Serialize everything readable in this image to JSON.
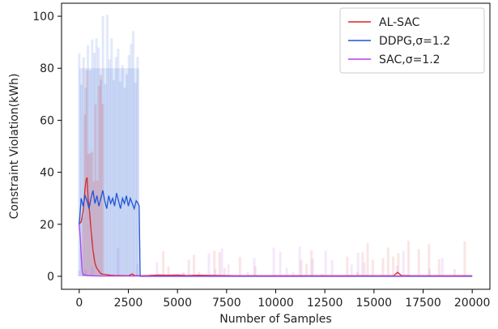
{
  "chart_data": {
    "type": "line",
    "title": "",
    "xlabel": "Number of Samples",
    "ylabel": "Constraint Violation(kWh)",
    "xlim": [
      -900,
      20900
    ],
    "ylim": [
      -5,
      105
    ],
    "x_ticks": [
      0,
      2500,
      5000,
      7500,
      10000,
      12500,
      15000,
      17500,
      20000
    ],
    "x_tick_labels": [
      "0",
      "2500",
      "5000",
      "7500",
      "10000",
      "12500",
      "15000",
      "17500",
      "20000"
    ],
    "y_ticks": [
      0,
      20,
      40,
      60,
      80,
      100
    ],
    "y_tick_labels": [
      "0",
      "20",
      "40",
      "60",
      "80",
      "100"
    ],
    "grid": false,
    "legend_position": "top-right",
    "series": [
      {
        "name": "AL-SAC",
        "color": "#d62728",
        "x": [
          0,
          100,
          200,
          300,
          350,
          400,
          450,
          500,
          600,
          700,
          800,
          900,
          1000,
          1100,
          1200,
          1400,
          1600,
          1800,
          2000,
          2500,
          2700,
          2800,
          3000,
          3500,
          4000,
          4500,
          5000,
          5500,
          6000,
          8000,
          10000,
          12000,
          14000,
          16000,
          16200,
          16400,
          17000,
          18000,
          20000
        ],
        "values": [
          20,
          21,
          25,
          34,
          37,
          38,
          30,
          27,
          18,
          10,
          5,
          3,
          2,
          1,
          0.8,
          0.6,
          0.4,
          0.3,
          0.3,
          0.2,
          0.9,
          0.3,
          0.2,
          0.3,
          0.5,
          0.4,
          0.5,
          0.3,
          0.4,
          0.2,
          0.2,
          0.2,
          0.2,
          0.2,
          1.5,
          0.3,
          0.2,
          0.2,
          0.2
        ]
      },
      {
        "name": "DDPG,σ=1.2",
        "color": "#1f55d6",
        "x": [
          0,
          100,
          200,
          300,
          400,
          500,
          600,
          700,
          800,
          900,
          1000,
          1100,
          1200,
          1300,
          1400,
          1500,
          1600,
          1700,
          1800,
          1900,
          2000,
          2100,
          2200,
          2300,
          2400,
          2500,
          2600,
          2700,
          2800,
          2900,
          3000,
          3050,
          3100,
          20000
        ],
        "values": [
          20,
          30,
          27,
          31,
          29,
          26,
          30,
          33,
          28,
          31,
          27,
          30,
          33,
          29,
          26,
          31,
          28,
          30,
          27,
          32,
          29,
          26,
          30,
          28,
          31,
          27,
          30,
          28,
          26,
          29,
          28,
          27,
          0,
          0
        ]
      },
      {
        "name": "SAC,σ=1.2",
        "color": "#b041f0",
        "x": [
          0,
          50,
          100,
          150,
          200,
          300,
          400,
          600,
          1000,
          20000
        ],
        "values": [
          20,
          15,
          8,
          2,
          0.5,
          0.6,
          0.3,
          0.2,
          0.1,
          0.1
        ]
      }
    ]
  }
}
